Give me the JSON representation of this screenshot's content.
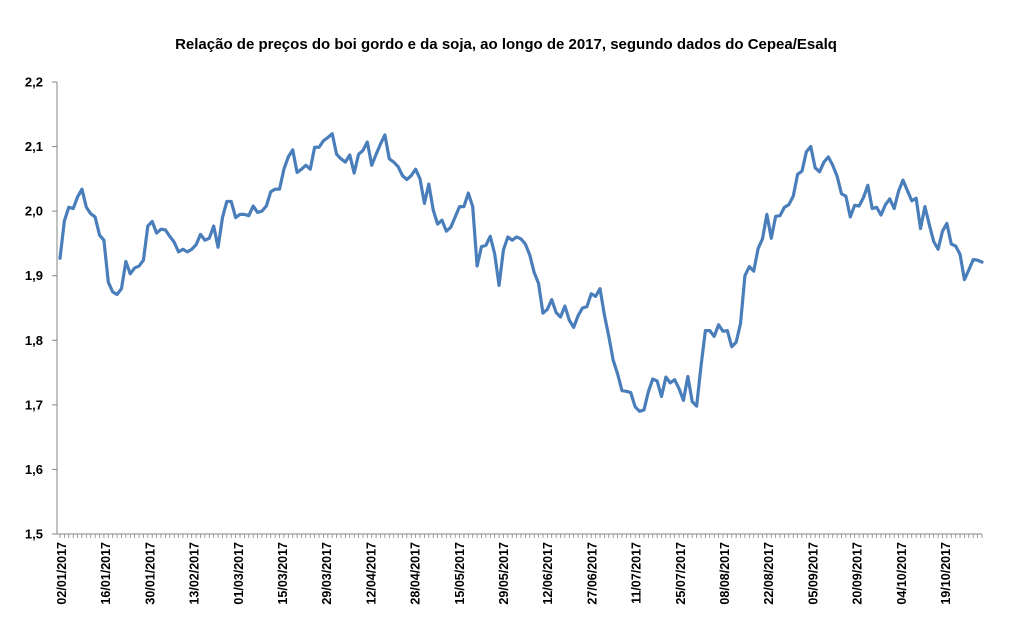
{
  "chart_data": {
    "type": "line",
    "title": "Relação de preços do boi gordo e da soja, ao longo de 2017, segundo dados do Cepea/Esalq",
    "xlabel": "",
    "ylabel": "",
    "ylim": [
      1.5,
      2.2
    ],
    "yticks": [
      "1,5",
      "1,6",
      "1,7",
      "1,8",
      "1,9",
      "2,0",
      "2,1",
      "2,2"
    ],
    "grid": false,
    "legend": "none",
    "line_color": "#4a7ebb",
    "x_date_labels": [
      "02/01/2017",
      "16/01/2017",
      "30/01/2017",
      "13/02/2017",
      "01/03/2017",
      "15/03/2017",
      "29/03/2017",
      "12/04/2017",
      "28/04/2017",
      "15/05/2017",
      "29/05/2017",
      "12/06/2017",
      "27/06/2017",
      "11/07/2017",
      "25/07/2017",
      "08/08/2017",
      "22/08/2017",
      "05/09/2017",
      "20/09/2017",
      "04/10/2017",
      "19/10/2017"
    ],
    "series": [
      {
        "values": [
          1.927,
          1.985,
          2.006,
          2.004,
          2.022,
          2.034,
          2.006,
          1.996,
          1.991,
          1.963,
          1.955,
          1.89,
          1.875,
          1.871,
          1.88,
          1.922,
          1.903,
          1.912,
          1.915,
          1.924,
          1.977,
          1.984,
          1.966,
          1.972,
          1.971,
          1.961,
          1.952,
          1.937,
          1.941,
          1.937,
          1.941,
          1.948,
          1.964,
          1.955,
          1.958,
          1.977,
          1.944,
          1.99,
          2.015,
          2.015,
          1.99,
          1.995,
          1.995,
          1.993,
          2.008,
          1.998,
          2.0,
          2.008,
          2.03,
          2.034,
          2.034,
          2.065,
          2.084,
          2.095,
          2.06,
          2.065,
          2.071,
          2.065,
          2.099,
          2.099,
          2.109,
          2.114,
          2.12,
          2.088,
          2.081,
          2.076,
          2.087,
          2.059,
          2.088,
          2.094,
          2.107,
          2.071,
          2.088,
          2.104,
          2.118,
          2.081,
          2.076,
          2.069,
          2.055,
          2.049,
          2.055,
          2.065,
          2.05,
          2.012,
          2.042,
          2.002,
          1.98,
          1.986,
          1.969,
          1.975,
          1.991,
          2.007,
          2.007,
          2.028,
          2.007,
          1.915,
          1.945,
          1.947,
          1.961,
          1.934,
          1.885,
          1.94,
          1.96,
          1.955,
          1.96,
          1.957,
          1.949,
          1.932,
          1.905,
          1.888,
          1.842,
          1.848,
          1.863,
          1.843,
          1.836,
          1.853,
          1.831,
          1.82,
          1.838,
          1.85,
          1.852,
          1.872,
          1.868,
          1.88,
          1.839,
          1.806,
          1.769,
          1.748,
          1.722,
          1.721,
          1.719,
          1.697,
          1.69,
          1.692,
          1.72,
          1.74,
          1.737,
          1.713,
          1.743,
          1.734,
          1.739,
          1.725,
          1.707,
          1.744,
          1.705,
          1.698,
          1.76,
          1.815,
          1.815,
          1.806,
          1.824,
          1.814,
          1.815,
          1.79,
          1.797,
          1.826,
          1.9,
          1.914,
          1.907,
          1.942,
          1.957,
          1.995,
          1.958,
          1.992,
          1.993,
          2.006,
          2.01,
          2.023,
          2.057,
          2.062,
          2.092,
          2.1,
          2.067,
          2.061,
          2.076,
          2.084,
          2.071,
          2.054,
          2.027,
          2.023,
          1.991,
          2.009,
          2.008,
          2.021,
          2.04,
          2.004,
          2.006,
          1.994,
          2.01,
          2.019,
          2.004,
          2.031,
          2.048,
          2.032,
          2.016,
          2.02,
          1.973,
          2.007,
          1.979,
          1.953,
          1.941,
          1.969,
          1.981,
          1.949,
          1.946,
          1.933,
          1.894,
          1.909,
          1.925,
          1.924,
          1.921
        ]
      }
    ]
  }
}
